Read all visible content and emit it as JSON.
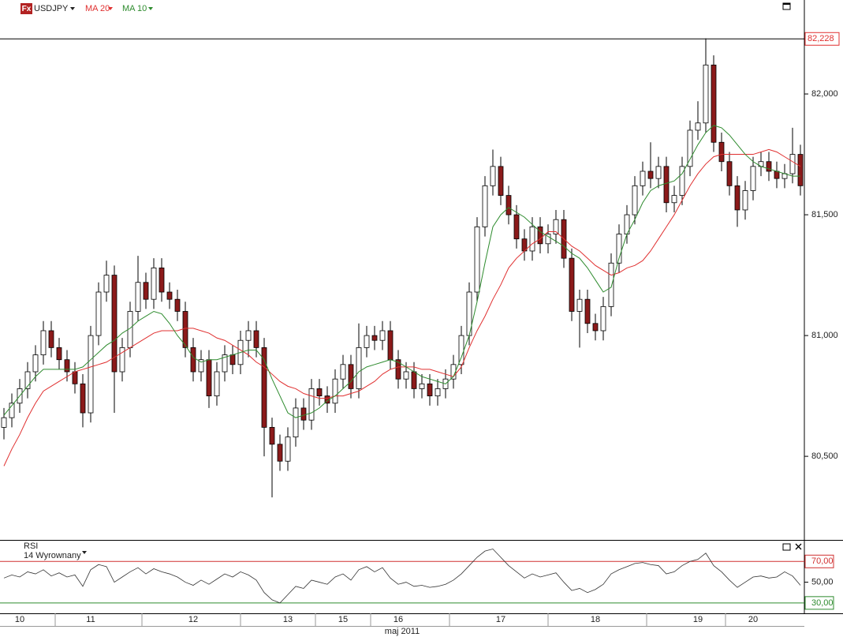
{
  "chart_data": [
    {
      "type": "candlestick",
      "icon": "Fx",
      "title": "USDJPY",
      "xlabel": "maj 2011",
      "categories": [
        null,
        null,
        "10",
        null,
        null,
        null,
        null,
        null,
        null,
        null,
        null,
        "11",
        null,
        null,
        null,
        null,
        null,
        null,
        null,
        null,
        null,
        null,
        null,
        null,
        "12",
        null,
        null,
        null,
        null,
        null,
        null,
        null,
        null,
        null,
        null,
        null,
        "13",
        null,
        null,
        null,
        null,
        null,
        null,
        "15",
        null,
        null,
        null,
        null,
        null,
        null,
        "16",
        null,
        null,
        null,
        null,
        null,
        null,
        null,
        null,
        null,
        null,
        null,
        null,
        "17",
        null,
        null,
        null,
        null,
        null,
        null,
        null,
        null,
        null,
        null,
        null,
        "18",
        null,
        null,
        null,
        null,
        null,
        null,
        null,
        null,
        null,
        null,
        null,
        null,
        "19",
        null,
        null,
        null,
        null,
        null,
        null,
        "20",
        null,
        null,
        null,
        null,
        null,
        null
      ],
      "open": [
        80.62,
        80.66,
        80.72,
        80.78,
        80.85,
        80.92,
        81.02,
        80.95,
        80.9,
        80.85,
        80.8,
        80.68,
        81.0,
        81.18,
        81.25,
        80.85,
        80.95,
        81.1,
        81.22,
        81.15,
        81.28,
        81.18,
        81.15,
        81.1,
        80.95,
        80.85,
        80.9,
        80.75,
        80.85,
        80.92,
        80.88,
        80.98,
        81.02,
        80.95,
        80.62,
        80.55,
        80.48,
        80.58,
        80.7,
        80.65,
        80.78,
        80.75,
        80.72,
        80.82,
        80.88,
        80.78,
        80.95,
        81.0,
        80.98,
        81.02,
        80.9,
        80.82,
        80.85,
        80.78,
        80.8,
        80.75,
        80.78,
        80.82,
        80.88,
        81.0,
        81.18,
        81.45,
        81.62,
        81.7,
        81.58,
        81.5,
        81.4,
        81.35,
        81.45,
        81.38,
        81.42,
        81.48,
        81.32,
        81.1,
        81.15,
        81.05,
        81.02,
        81.12,
        81.3,
        81.42,
        81.5,
        81.62,
        81.68,
        81.65,
        81.7,
        81.55,
        81.58,
        81.7,
        81.85,
        81.88,
        82.12,
        81.8,
        81.72,
        81.62,
        81.52,
        81.6,
        81.7,
        81.72,
        81.68,
        81.65,
        81.67,
        81.75
      ],
      "high": [
        80.7,
        80.76,
        80.82,
        80.89,
        80.96,
        81.06,
        81.06,
        80.99,
        80.94,
        80.89,
        80.84,
        81.04,
        81.22,
        81.31,
        81.29,
        80.99,
        81.14,
        81.33,
        81.26,
        81.32,
        81.32,
        81.22,
        81.19,
        81.14,
        80.99,
        80.94,
        80.94,
        80.89,
        80.96,
        80.96,
        81.02,
        81.06,
        81.06,
        80.99,
        80.66,
        80.59,
        80.62,
        80.74,
        80.74,
        80.82,
        80.82,
        80.79,
        80.86,
        80.92,
        80.92,
        81.05,
        81.04,
        81.04,
        81.06,
        81.06,
        80.94,
        80.89,
        80.89,
        80.84,
        80.84,
        80.82,
        80.86,
        80.92,
        81.04,
        81.22,
        81.49,
        81.66,
        81.77,
        81.74,
        81.62,
        81.54,
        81.44,
        81.49,
        81.49,
        81.46,
        81.52,
        81.52,
        81.36,
        81.19,
        81.19,
        81.09,
        81.16,
        81.34,
        81.46,
        81.54,
        81.66,
        81.72,
        81.8,
        81.74,
        81.74,
        81.62,
        81.74,
        81.89,
        81.97,
        82.23,
        82.16,
        81.84,
        81.76,
        81.66,
        81.64,
        81.74,
        81.76,
        81.76,
        81.72,
        81.71,
        81.86,
        81.79
      ],
      "low": [
        80.57,
        80.62,
        80.68,
        80.74,
        80.81,
        80.88,
        80.91,
        80.86,
        80.81,
        80.76,
        80.62,
        80.64,
        80.96,
        81.14,
        80.68,
        80.81,
        80.91,
        81.06,
        81.11,
        81.11,
        81.14,
        81.11,
        81.06,
        80.91,
        80.81,
        80.81,
        80.7,
        80.71,
        80.81,
        80.84,
        80.84,
        80.91,
        80.91,
        80.5,
        80.33,
        80.44,
        80.44,
        80.54,
        80.61,
        80.61,
        80.71,
        80.68,
        80.68,
        80.78,
        80.74,
        80.74,
        80.91,
        80.94,
        80.94,
        80.86,
        80.78,
        80.78,
        80.74,
        80.74,
        80.71,
        80.71,
        80.74,
        80.78,
        80.84,
        80.96,
        81.14,
        81.41,
        81.58,
        81.54,
        81.46,
        81.36,
        81.31,
        81.31,
        81.34,
        81.34,
        81.38,
        81.28,
        81.06,
        80.95,
        81.01,
        80.98,
        80.98,
        81.08,
        81.26,
        81.38,
        81.46,
        81.58,
        81.61,
        81.61,
        81.51,
        81.51,
        81.54,
        81.66,
        81.81,
        81.84,
        81.76,
        81.68,
        81.58,
        81.45,
        81.48,
        81.56,
        81.66,
        81.64,
        81.61,
        81.61,
        81.63,
        81.58
      ],
      "close": [
        80.66,
        80.72,
        80.78,
        80.85,
        80.92,
        81.02,
        80.95,
        80.9,
        80.85,
        80.8,
        80.68,
        81.0,
        81.18,
        81.25,
        80.85,
        80.95,
        81.1,
        81.22,
        81.15,
        81.28,
        81.18,
        81.15,
        81.1,
        80.95,
        80.85,
        80.9,
        80.75,
        80.85,
        80.92,
        80.88,
        80.98,
        81.02,
        80.95,
        80.62,
        80.55,
        80.48,
        80.58,
        80.7,
        80.65,
        80.78,
        80.75,
        80.72,
        80.82,
        80.88,
        80.78,
        80.95,
        81.0,
        80.98,
        81.02,
        80.9,
        80.82,
        80.85,
        80.78,
        80.8,
        80.75,
        80.78,
        80.82,
        80.88,
        81.0,
        81.18,
        81.45,
        81.62,
        81.7,
        81.58,
        81.5,
        81.4,
        81.35,
        81.45,
        81.38,
        81.42,
        81.48,
        81.32,
        81.1,
        81.15,
        81.05,
        81.02,
        81.12,
        81.3,
        81.42,
        81.5,
        81.62,
        81.68,
        81.65,
        81.7,
        81.55,
        81.58,
        81.7,
        81.85,
        81.88,
        82.12,
        81.8,
        81.72,
        81.62,
        81.52,
        81.6,
        81.7,
        81.72,
        81.68,
        81.65,
        81.67,
        81.75,
        81.62
      ],
      "up_color": "#ffffff",
      "down_color": "#8b1a1a",
      "series": [
        {
          "name": "MA 20",
          "color": "#e03030",
          "values": [
            80.46,
            80.53,
            80.59,
            80.66,
            80.72,
            80.77,
            80.79,
            80.81,
            80.83,
            80.85,
            80.86,
            80.87,
            80.88,
            80.89,
            80.91,
            80.93,
            80.95,
            80.97,
            80.99,
            81.01,
            81.02,
            81.02,
            81.02,
            81.03,
            81.03,
            81.02,
            81.01,
            80.99,
            80.98,
            80.96,
            80.94,
            80.92,
            80.89,
            80.87,
            80.84,
            80.81,
            80.79,
            80.78,
            80.76,
            80.75,
            80.74,
            80.74,
            80.75,
            80.75,
            80.76,
            80.77,
            80.79,
            80.81,
            80.84,
            80.86,
            80.87,
            80.87,
            80.87,
            80.86,
            80.86,
            80.85,
            80.84,
            80.83,
            80.87,
            80.95,
            81.02,
            81.08,
            81.15,
            81.21,
            81.28,
            81.32,
            81.35,
            81.38,
            81.4,
            81.43,
            81.43,
            81.4,
            81.37,
            81.35,
            81.32,
            81.29,
            81.27,
            81.25,
            81.26,
            81.28,
            81.29,
            81.31,
            81.35,
            81.4,
            81.45,
            81.5,
            81.56,
            81.62,
            81.67,
            81.71,
            81.74,
            81.75,
            81.75,
            81.75,
            81.75,
            81.75,
            81.76,
            81.77,
            81.76,
            81.74,
            81.72,
            81.7
          ]
        },
        {
          "name": "MA 10",
          "color": "#2e8b2e",
          "values": [
            80.67,
            80.71,
            80.75,
            80.79,
            80.83,
            80.86,
            80.86,
            80.86,
            80.86,
            80.86,
            80.87,
            80.9,
            80.93,
            80.96,
            80.98,
            81.01,
            81.03,
            81.06,
            81.08,
            81.1,
            81.09,
            81.05,
            81.0,
            80.96,
            80.91,
            80.89,
            80.9,
            80.9,
            80.91,
            80.92,
            80.93,
            80.94,
            80.94,
            80.9,
            80.82,
            80.75,
            80.68,
            80.66,
            80.67,
            80.68,
            80.7,
            80.73,
            80.75,
            80.78,
            80.81,
            80.85,
            80.87,
            80.88,
            80.89,
            80.9,
            80.89,
            80.87,
            80.85,
            80.83,
            80.82,
            80.81,
            80.8,
            80.83,
            80.91,
            81.0,
            81.14,
            81.3,
            81.45,
            81.5,
            81.53,
            81.51,
            81.49,
            81.46,
            81.43,
            81.41,
            81.39,
            81.37,
            81.34,
            81.32,
            81.28,
            81.23,
            81.18,
            81.2,
            81.32,
            81.42,
            81.48,
            81.55,
            81.6,
            81.62,
            81.63,
            81.64,
            81.67,
            81.73,
            81.79,
            81.84,
            81.87,
            81.86,
            81.83,
            81.79,
            81.75,
            81.72,
            81.7,
            81.69,
            81.68,
            81.67,
            81.66,
            81.66
          ]
        }
      ],
      "ylim": [
        80.154,
        82.389
      ],
      "yticks": [
        {
          "value": 80.5,
          "label": "80,500"
        },
        {
          "value": 81,
          "label": "81,000"
        },
        {
          "value": 81.5,
          "label": "81,500"
        },
        {
          "value": 82,
          "label": "82,000"
        }
      ],
      "reference_line": {
        "value": 82.228,
        "label": "82,228"
      }
    },
    {
      "type": "line",
      "title": "RSI",
      "subtitle": "14 Wyrownany",
      "color": "#333333",
      "values": [
        54,
        57,
        55,
        60,
        58,
        62,
        56,
        59,
        55,
        57,
        46,
        62,
        67,
        65,
        50,
        55,
        60,
        64,
        58,
        63,
        60,
        58,
        55,
        50,
        47,
        52,
        48,
        53,
        58,
        55,
        60,
        57,
        52,
        40,
        33,
        30,
        38,
        46,
        44,
        52,
        50,
        48,
        55,
        58,
        52,
        62,
        65,
        60,
        64,
        54,
        48,
        50,
        46,
        47,
        45,
        46,
        48,
        52,
        58,
        66,
        74,
        80,
        82,
        74,
        66,
        60,
        54,
        58,
        55,
        57,
        59,
        50,
        42,
        44,
        40,
        43,
        48,
        58,
        62,
        65,
        68,
        69,
        67,
        66,
        58,
        60,
        66,
        70,
        72,
        78,
        66,
        60,
        52,
        45,
        50,
        55,
        56,
        54,
        55,
        60,
        56,
        47
      ],
      "ylim": [
        20,
        90
      ],
      "yticks": [
        {
          "value": 30,
          "label": "30,00"
        },
        {
          "value": 50,
          "label": "50,00"
        },
        {
          "value": 70,
          "label": "70,00"
        }
      ],
      "levels": [
        {
          "value": 70,
          "color": "#d03030"
        },
        {
          "value": 30,
          "color": "#2e8b2e"
        }
      ]
    }
  ]
}
